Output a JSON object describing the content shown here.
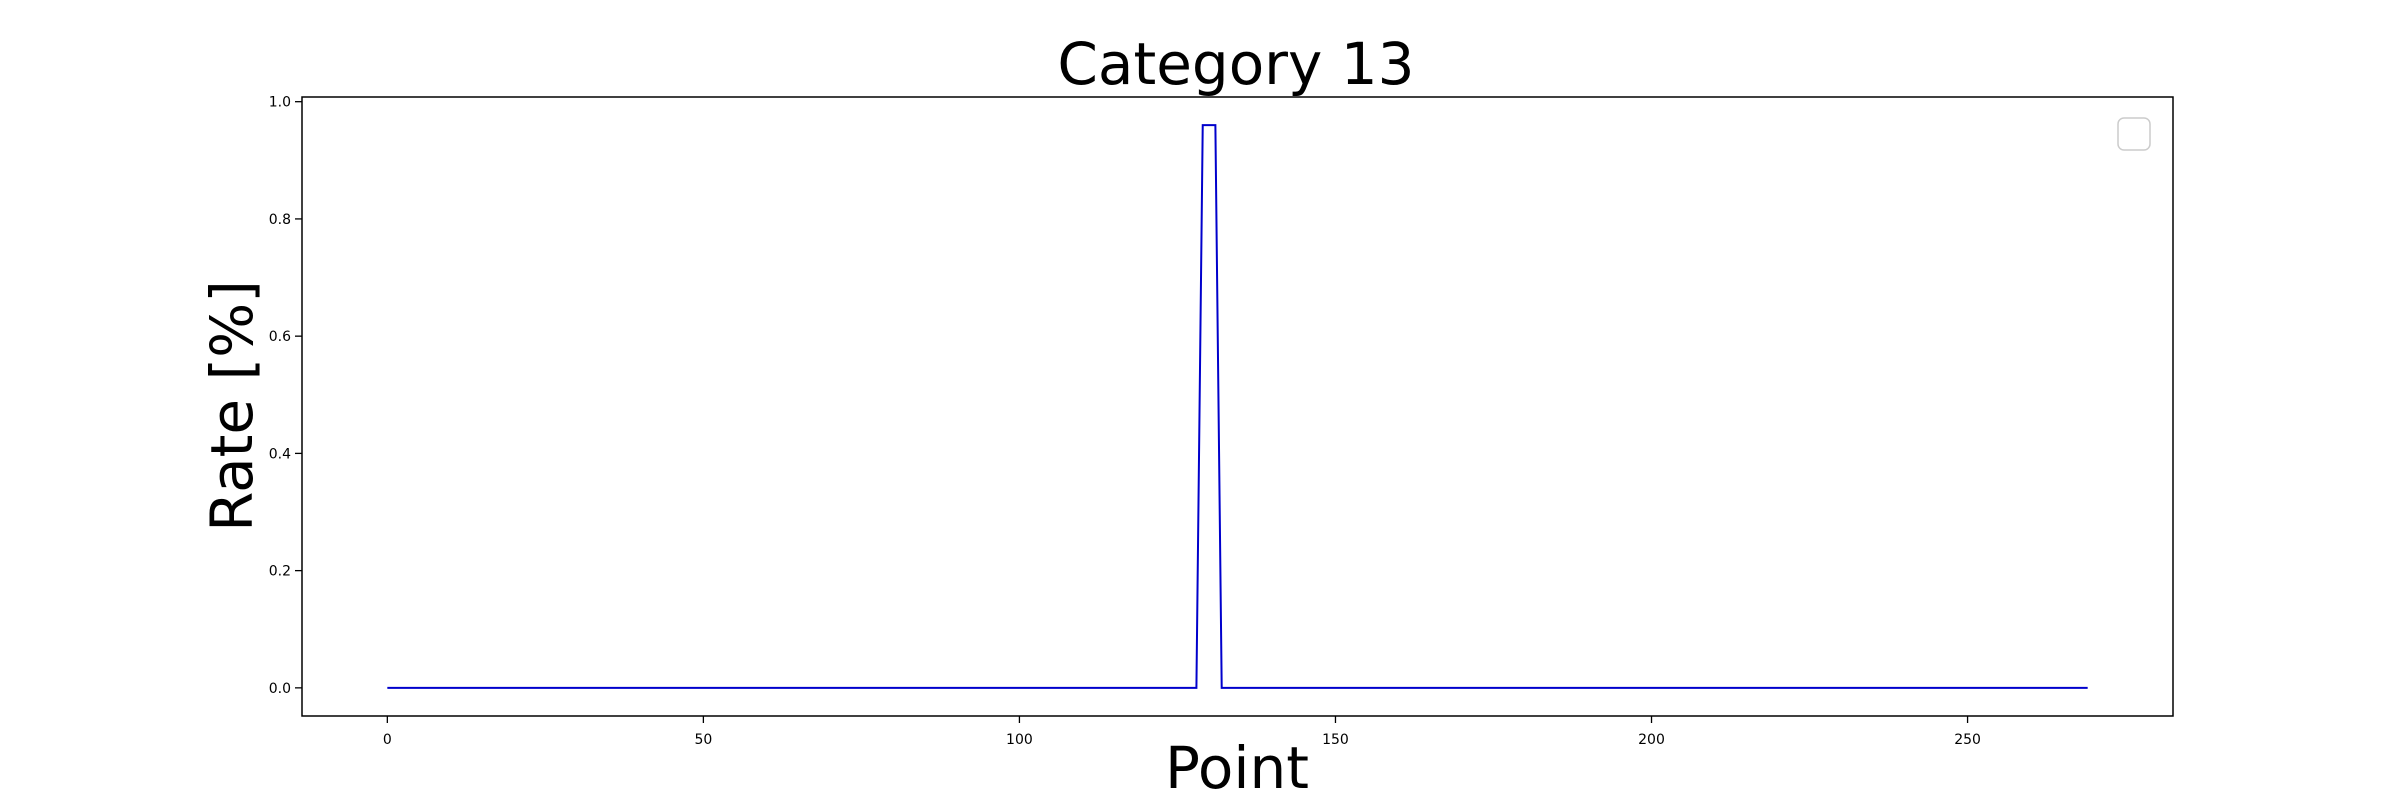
{
  "chart_data": {
    "type": "line",
    "title": "Category 13",
    "xlabel": "Point",
    "ylabel": "Rate [%]",
    "xlim": [
      -13.5,
      282.5
    ],
    "ylim": [
      -0.048,
      1.008
    ],
    "x_ticks": [
      0,
      50,
      100,
      150,
      200,
      250
    ],
    "x_tick_labels": [
      "0",
      "50",
      "100",
      "150",
      "200",
      "250"
    ],
    "y_ticks": [
      0.0,
      0.2,
      0.4,
      0.6,
      0.8,
      1.0
    ],
    "y_tick_labels": [
      "0.0",
      "0.2",
      "0.4",
      "0.6",
      "0.8",
      "1.0"
    ],
    "grid": false,
    "legend": {
      "placement": "top-right",
      "entries": []
    },
    "series": [
      {
        "color": "#0000cc",
        "x": [
          0,
          128,
          129,
          130,
          131,
          132,
          269
        ],
        "y": [
          0.0,
          0.0,
          0.96,
          0.96,
          0.96,
          0.0,
          0.0
        ]
      }
    ]
  }
}
